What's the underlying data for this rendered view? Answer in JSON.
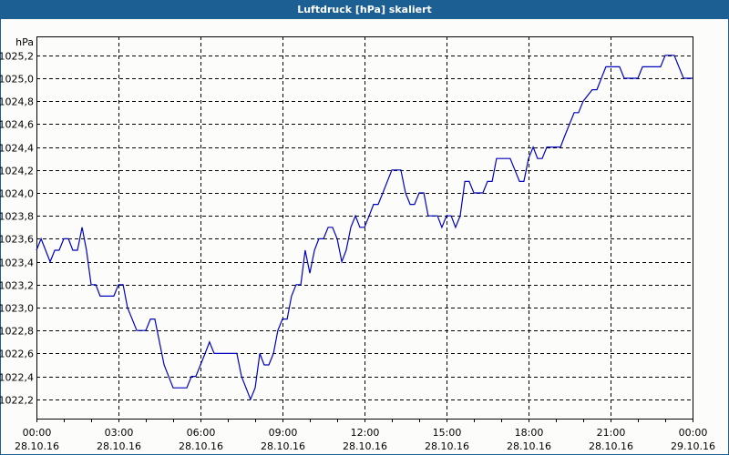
{
  "window": {
    "title": "Luftdruck [hPa] skaliert",
    "title_bar_color": "#1c5f93",
    "background": "#fcfdfb"
  },
  "chart_data": {
    "type": "line",
    "title": "Luftdruck [hPa] skaliert",
    "xlabel": "",
    "ylabel": "hPa",
    "ylim": [
      1022.05,
      1025.3
    ],
    "xlim_hours": [
      0,
      24
    ],
    "grid": true,
    "line_color": "#0000c0",
    "y_ticks": [
      "1022,2",
      "1022,4",
      "1022,6",
      "1022,8",
      "1023,0",
      "1023,2",
      "1023,4",
      "1023,6",
      "1023,8",
      "1024,0",
      "1024,2",
      "1024,4",
      "1024,6",
      "1024,8",
      "1025,0",
      "1025,2"
    ],
    "x_ticks": [
      {
        "time": "00:00",
        "date": "28.10.16"
      },
      {
        "time": "03:00",
        "date": "28.10.16"
      },
      {
        "time": "06:00",
        "date": "28.10.16"
      },
      {
        "time": "09:00",
        "date": "28.10.16"
      },
      {
        "time": "12:00",
        "date": "28.10.16"
      },
      {
        "time": "15:00",
        "date": "28.10.16"
      },
      {
        "time": "18:00",
        "date": "28.10.16"
      },
      {
        "time": "21:00",
        "date": "28.10.16"
      },
      {
        "time": "00:00",
        "date": "29.10.16"
      }
    ],
    "series": [
      {
        "name": "Luftdruck",
        "unit": "hPa",
        "x_hours": [
          0,
          0.17,
          0.5,
          0.67,
          0.83,
          1.0,
          1.17,
          1.33,
          1.5,
          1.67,
          1.83,
          2.0,
          2.17,
          2.33,
          2.83,
          3.0,
          3.17,
          3.33,
          3.67,
          4.0,
          4.17,
          4.33,
          4.5,
          4.67,
          5.0,
          5.5,
          5.67,
          5.83,
          6.17,
          6.33,
          6.5,
          7.33,
          7.5,
          7.83,
          8.0,
          8.17,
          8.33,
          8.5,
          8.67,
          8.83,
          9.0,
          9.17,
          9.33,
          9.5,
          9.67,
          9.83,
          10.0,
          10.17,
          10.33,
          10.5,
          10.67,
          10.83,
          11.0,
          11.17,
          11.33,
          11.5,
          11.67,
          11.83,
          12.0,
          12.17,
          12.33,
          12.5,
          12.67,
          13.0,
          13.33,
          13.5,
          13.67,
          13.83,
          14.0,
          14.17,
          14.33,
          14.67,
          14.83,
          15.0,
          15.17,
          15.33,
          15.5,
          15.67,
          15.83,
          16.0,
          16.33,
          16.5,
          16.67,
          16.83,
          17.33,
          17.5,
          17.67,
          17.83,
          18.0,
          18.17,
          18.33,
          18.5,
          18.67,
          19.17,
          19.33,
          19.67,
          19.83,
          20.0,
          20.33,
          20.5,
          20.83,
          21.33,
          21.5,
          22.0,
          22.17,
          22.83,
          23.0,
          23.33,
          23.67,
          24.0
        ],
        "values": [
          1023.5,
          1023.6,
          1023.4,
          1023.5,
          1023.5,
          1023.6,
          1023.6,
          1023.5,
          1023.5,
          1023.7,
          1023.5,
          1023.2,
          1023.2,
          1023.1,
          1023.1,
          1023.2,
          1023.2,
          1023.0,
          1022.8,
          1022.8,
          1022.9,
          1022.9,
          1022.7,
          1022.5,
          1022.3,
          1022.3,
          1022.4,
          1022.4,
          1022.6,
          1022.7,
          1022.6,
          1022.6,
          1022.4,
          1022.2,
          1022.3,
          1022.6,
          1022.5,
          1022.5,
          1022.6,
          1022.8,
          1022.9,
          1022.9,
          1023.1,
          1023.2,
          1023.2,
          1023.5,
          1023.3,
          1023.5,
          1023.6,
          1023.6,
          1023.7,
          1023.7,
          1023.6,
          1023.4,
          1023.5,
          1023.7,
          1023.8,
          1023.7,
          1023.7,
          1023.8,
          1023.9,
          1023.9,
          1024.0,
          1024.2,
          1024.2,
          1024.0,
          1023.9,
          1023.9,
          1024.0,
          1024.0,
          1023.8,
          1023.8,
          1023.7,
          1023.8,
          1023.8,
          1023.7,
          1023.8,
          1024.1,
          1024.1,
          1024.0,
          1024.0,
          1024.1,
          1024.1,
          1024.3,
          1024.3,
          1024.2,
          1024.1,
          1024.1,
          1024.3,
          1024.4,
          1024.3,
          1024.3,
          1024.4,
          1024.4,
          1024.5,
          1024.7,
          1024.7,
          1024.8,
          1024.9,
          1024.9,
          1025.1,
          1025.1,
          1025.0,
          1025.0,
          1025.1,
          1025.1,
          1025.2,
          1025.2,
          1025.0,
          1025.0
        ]
      }
    ]
  }
}
